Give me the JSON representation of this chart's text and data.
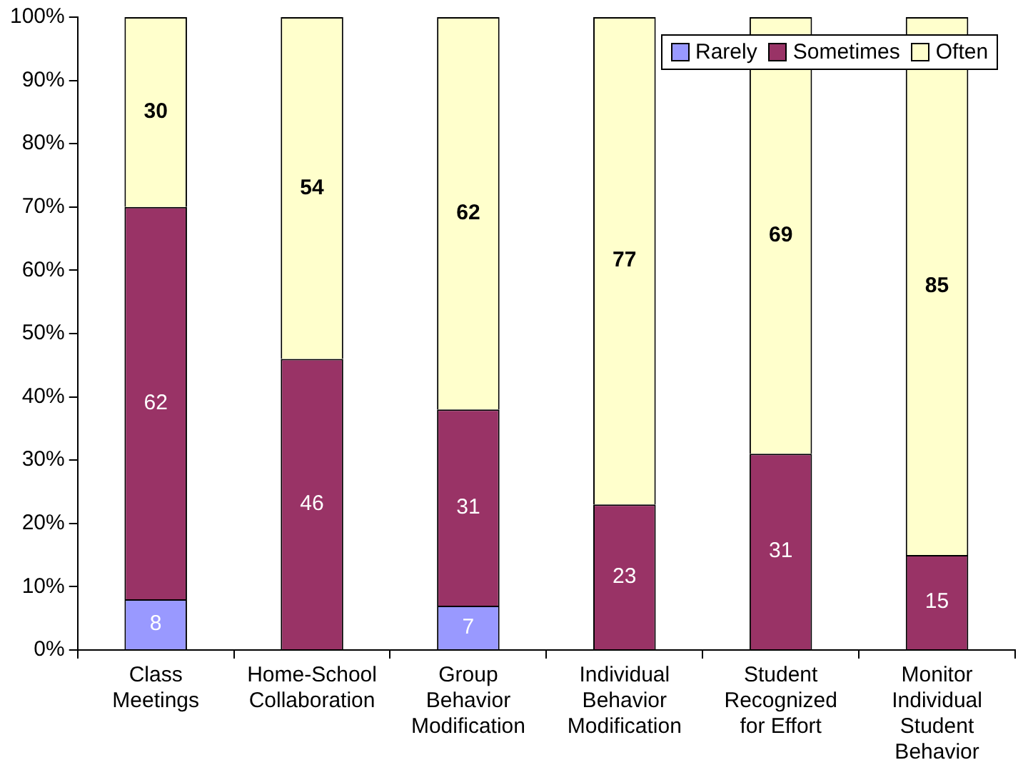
{
  "chart_data": {
    "type": "bar",
    "stacked": true,
    "categories": [
      "Class Meetings",
      "Home-School Collaboration",
      "Group Behavior Modification",
      "Individual Behavior Modification",
      "Student Recognized for Effort",
      "Monitor Individual Student Behavior"
    ],
    "series": [
      {
        "name": "Rarely",
        "color": "#9999ff",
        "values": [
          8,
          null,
          7,
          null,
          null,
          null
        ]
      },
      {
        "name": "Sometimes",
        "color": "#993366",
        "values": [
          62,
          46,
          31,
          23,
          31,
          15
        ]
      },
      {
        "name": "Often",
        "color": "#ffffcc",
        "values": [
          30,
          54,
          62,
          77,
          69,
          85
        ]
      }
    ],
    "ylim": [
      0,
      100
    ],
    "yticks": [
      {
        "value": 0,
        "label": "0%"
      },
      {
        "value": 10,
        "label": "10%"
      },
      {
        "value": 20,
        "label": "20%"
      },
      {
        "value": 30,
        "label": "30%"
      },
      {
        "value": 40,
        "label": "40%"
      },
      {
        "value": 50,
        "label": "50%"
      },
      {
        "value": 60,
        "label": "60%"
      },
      {
        "value": 70,
        "label": "70%"
      },
      {
        "value": 80,
        "label": "80%"
      },
      {
        "value": 90,
        "label": "90%"
      },
      {
        "value": 100,
        "label": "100%"
      }
    ],
    "legend": "top right",
    "data_labels": true
  }
}
